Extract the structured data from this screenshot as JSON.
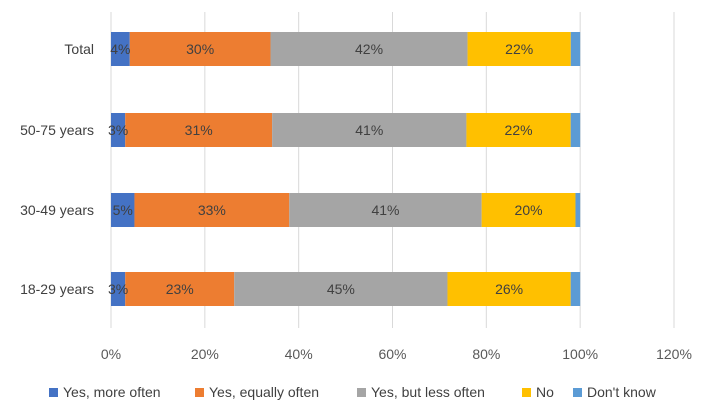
{
  "chart_data": {
    "type": "bar",
    "orientation": "horizontal",
    "stacked": true,
    "categories": [
      "Total",
      "50-75 years",
      "30-49 years",
      "18-29 years"
    ],
    "series": [
      {
        "name": "Yes, more often",
        "color": "#4472C4",
        "values": [
          4,
          3,
          5,
          3
        ],
        "labels": [
          "4%",
          "3%",
          "5%",
          "3%"
        ]
      },
      {
        "name": "Yes, equally often",
        "color": "#ED7D31",
        "values": [
          30,
          31,
          33,
          23
        ],
        "labels": [
          "30%",
          "31%",
          "33%",
          "23%"
        ]
      },
      {
        "name": "Yes, but less often",
        "color": "#A5A5A5",
        "values": [
          42,
          41,
          41,
          45
        ],
        "labels": [
          "42%",
          "41%",
          "41%",
          "45%"
        ]
      },
      {
        "name": "No",
        "color": "#FFC000",
        "values": [
          22,
          22,
          20,
          26
        ],
        "labels": [
          "22%",
          "22%",
          "20%",
          "26%"
        ]
      },
      {
        "name": "Don't know",
        "color": "#5B9BD5",
        "values": [
          2,
          2,
          1,
          2
        ],
        "labels": [
          "",
          "",
          "",
          ""
        ]
      }
    ],
    "x_ticks": [
      "0%",
      "20%",
      "40%",
      "60%",
      "80%",
      "100%",
      "120%"
    ],
    "xlim": [
      0,
      120
    ],
    "grid": true,
    "legend_position": "bottom"
  }
}
